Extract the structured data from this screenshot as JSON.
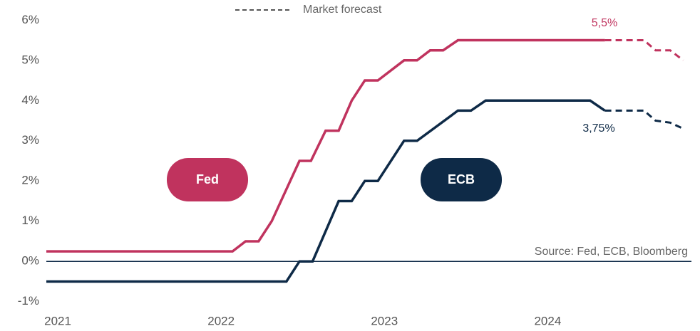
{
  "chart_data": {
    "type": "line",
    "legend_label": "Market forecast",
    "source": "Source: Fed, ECB, Bloomberg",
    "annotations": [
      "5,5%",
      "3,75%"
    ],
    "xlim": [
      2020.93,
      2024.88
    ],
    "xticks": [
      2021,
      2022,
      2023,
      2024
    ],
    "ylim": [
      -1.2,
      6.2
    ],
    "yticks": [
      {
        "value": 6,
        "label": "6%"
      },
      {
        "value": 5,
        "label": "5%"
      },
      {
        "value": 4,
        "label": "4%"
      },
      {
        "value": 3,
        "label": "3%"
      },
      {
        "value": 2,
        "label": "2%"
      },
      {
        "value": 1,
        "label": "1%"
      },
      {
        "value": 0,
        "label": "0%"
      },
      {
        "value": -1,
        "label": "-1%"
      }
    ],
    "grid": false,
    "series": [
      {
        "name": "Fed",
        "color": "#c0335e",
        "x": [
          2020.93,
          2022.07,
          2022.15,
          2022.23,
          2022.31,
          2022.48,
          2022.55,
          2022.64,
          2022.72,
          2022.8,
          2022.88,
          2022.96,
          2023.12,
          2023.2,
          2023.28,
          2023.36,
          2023.45,
          2024.35
        ],
        "values": [
          0.25,
          0.25,
          0.5,
          0.5,
          1.0,
          2.5,
          2.5,
          3.25,
          3.25,
          4.0,
          4.5,
          4.5,
          5.0,
          5.0,
          5.25,
          5.25,
          5.5,
          5.5
        ],
        "forecast_x": [
          2024.35,
          2024.59,
          2024.66,
          2024.75,
          2024.83
        ],
        "forecast_values": [
          5.5,
          5.5,
          5.25,
          5.25,
          5.0
        ]
      },
      {
        "name": "ECB",
        "color": "#0e2a47",
        "x": [
          2020.93,
          2022.4,
          2022.48,
          2022.56,
          2022.72,
          2022.8,
          2022.88,
          2022.96,
          2023.12,
          2023.2,
          2023.45,
          2023.53,
          2023.62,
          2024.26,
          2024.35
        ],
        "values": [
          -0.5,
          -0.5,
          0,
          0,
          1.5,
          1.5,
          2.0,
          2.0,
          3.0,
          3.0,
          3.75,
          3.75,
          4.0,
          4.0,
          3.75
        ],
        "forecast_x": [
          2024.35,
          2024.59,
          2024.66,
          2024.75,
          2024.83
        ],
        "forecast_values": [
          3.75,
          3.75,
          3.5,
          3.45,
          3.3
        ]
      }
    ]
  }
}
